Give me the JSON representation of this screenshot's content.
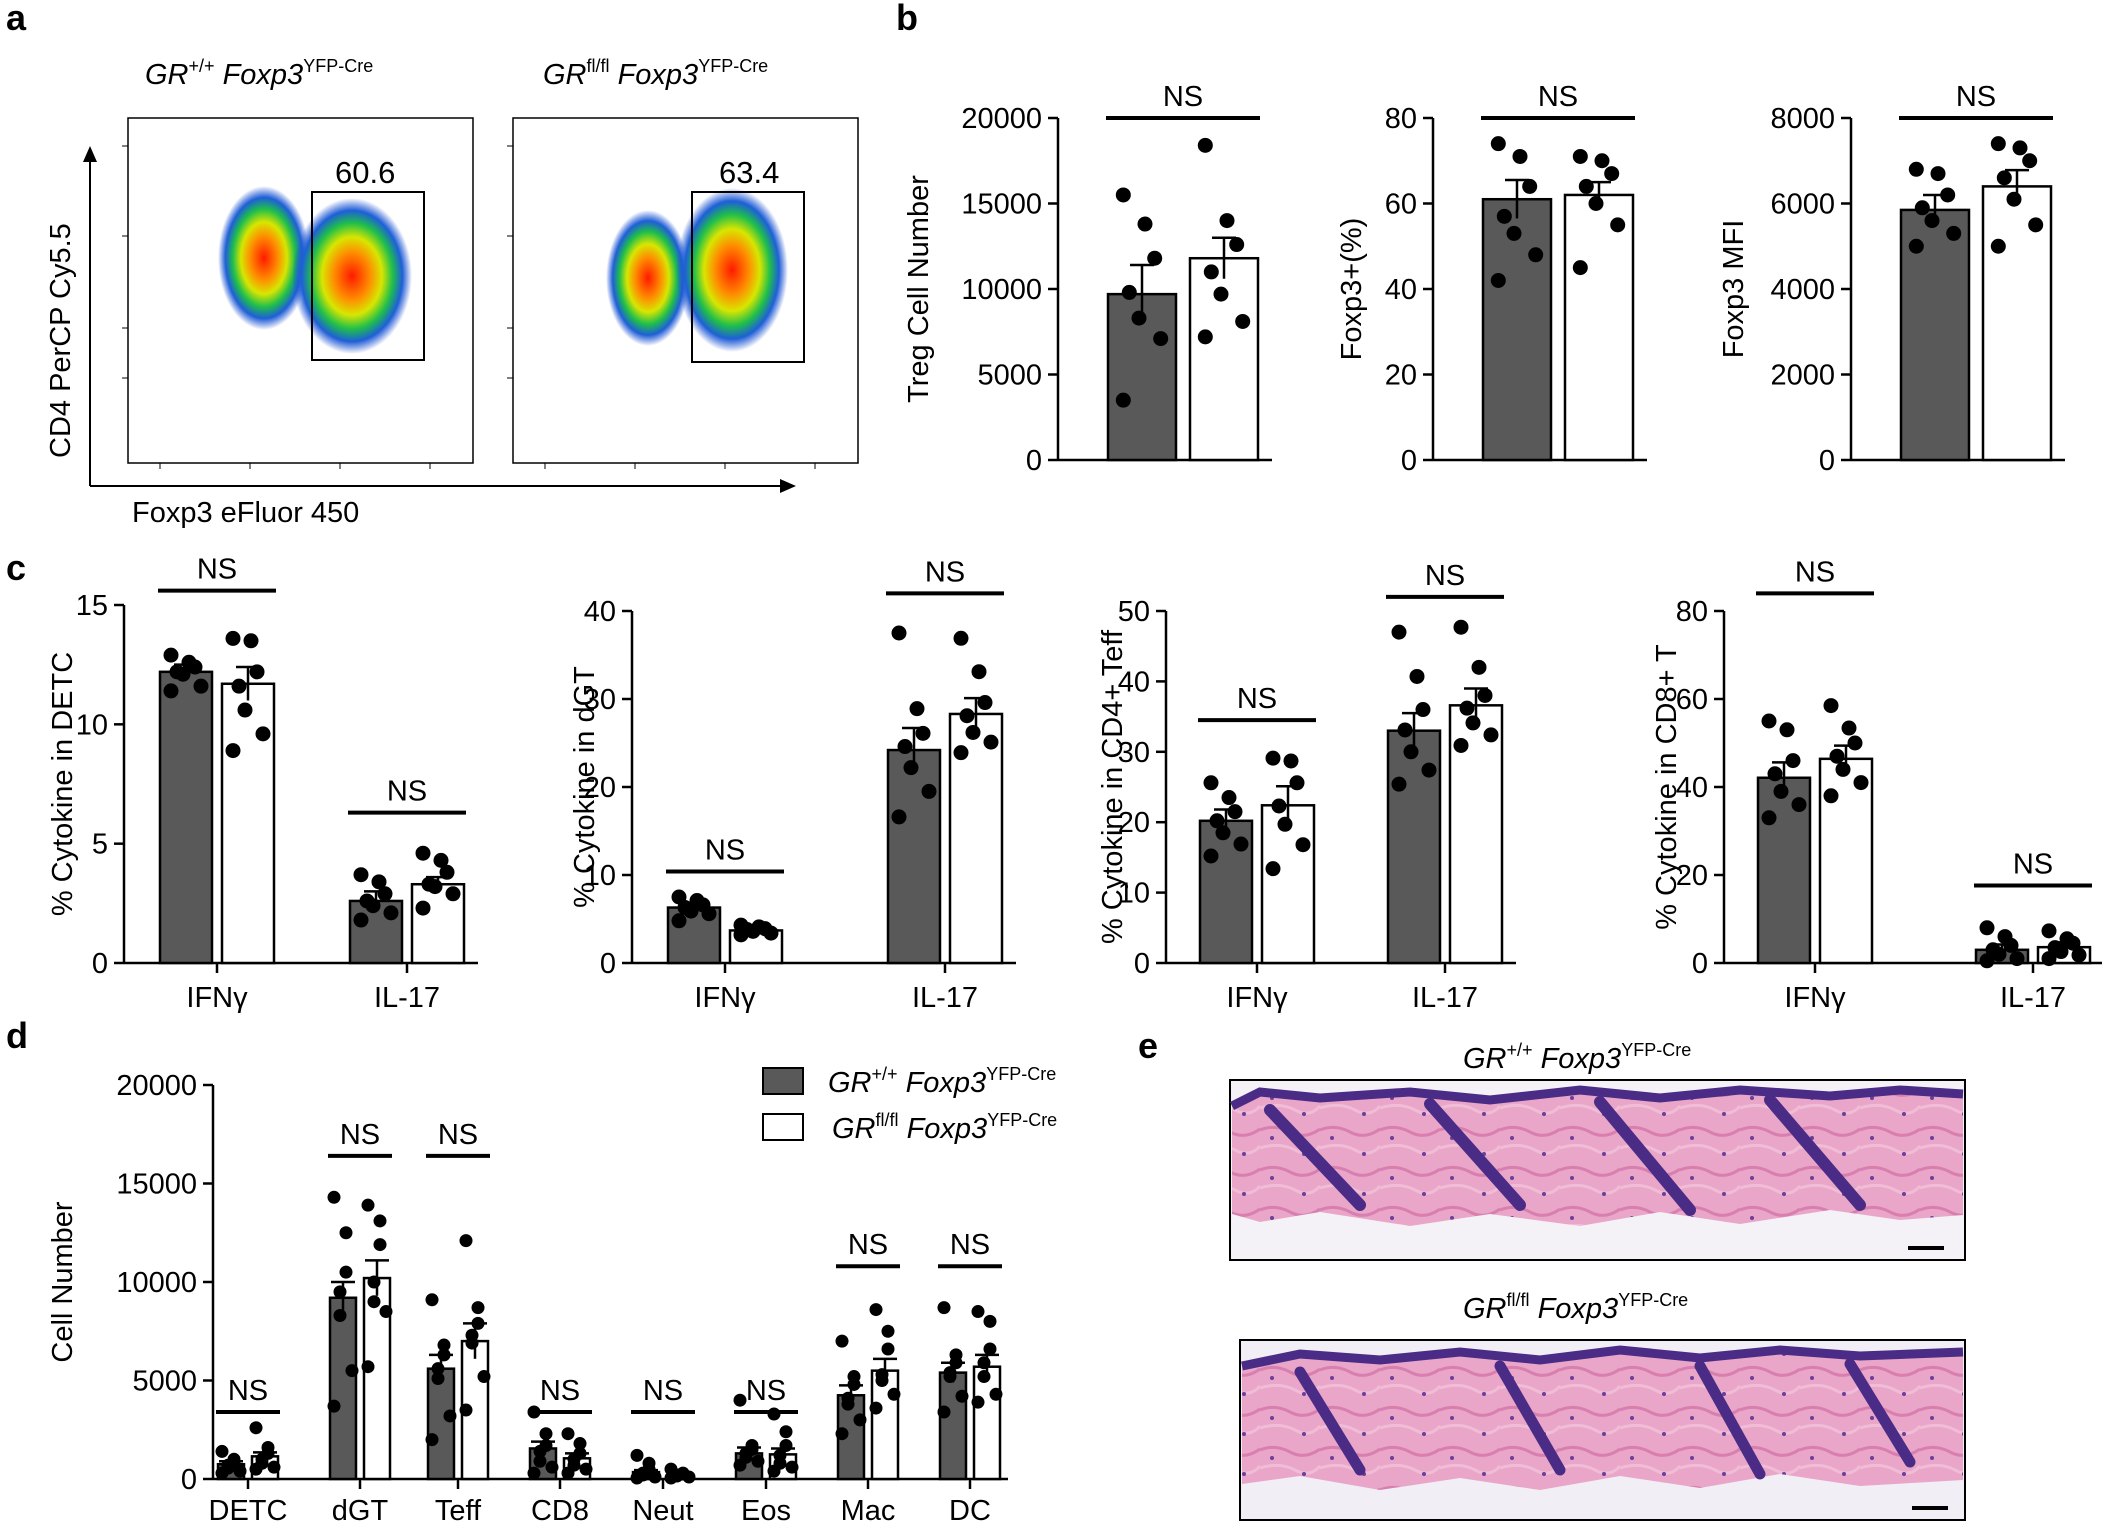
{
  "panels": {
    "a": "a",
    "b": "b",
    "c": "c",
    "d": "d",
    "e": "e"
  },
  "colors": {
    "gr_wt": "#595959",
    "gr_flfl": "#ffffff",
    "point": "#000000",
    "ink": "#000000"
  },
  "flow": {
    "type": "flow-cytometry",
    "x_label": "Foxp3 eFluor 450",
    "y_label": "CD4 PerCP Cy5.5",
    "plots": [
      {
        "genotype_main": "GR",
        "genotype_sup1": "+/+",
        "genotype_mid": " Foxp3",
        "genotype_sup2": "YFP-Cre",
        "gate_percent": "60.6"
      },
      {
        "genotype_main": "GR",
        "genotype_sup1": "fl/fl",
        "genotype_mid": " Foxp3",
        "genotype_sup2": "YFP-Cre",
        "gate_percent": "63.4"
      }
    ]
  },
  "chart_data": [
    {
      "id": "b1",
      "type": "bar",
      "ylabel": "Treg Cell Number",
      "ylim": [
        0,
        20000
      ],
      "yticks": [
        0,
        5000,
        10000,
        15000,
        20000
      ],
      "categories": [
        ""
      ],
      "series": [
        {
          "name": "GR+/+ Foxp3YFP-Cre",
          "values": [
            9700
          ],
          "sem": [
            1700
          ],
          "points": [
            [
              15500,
              13800,
              11800,
              9800,
              8300,
              7100,
              3500
            ]
          ]
        },
        {
          "name": "GRfl/fl Foxp3YFP-Cre",
          "values": [
            11800
          ],
          "sem": [
            1200
          ],
          "points": [
            [
              18400,
              14000,
              12600,
              11000,
              9700,
              8100,
              7200
            ]
          ]
        }
      ],
      "annotations": [
        {
          "text": "NS",
          "groups": [
            0
          ],
          "y": 20000
        }
      ]
    },
    {
      "id": "b2",
      "type": "bar",
      "ylabel": "Foxp3+(%)",
      "ylim": [
        0,
        80
      ],
      "yticks": [
        0,
        20,
        40,
        60,
        80
      ],
      "categories": [
        ""
      ],
      "series": [
        {
          "name": "GR+/+ Foxp3YFP-Cre",
          "values": [
            61
          ],
          "sem": [
            4.5
          ],
          "points": [
            [
              74,
              71,
              64,
              57,
              53,
              48,
              42
            ]
          ]
        },
        {
          "name": "GRfl/fl Foxp3YFP-Cre",
          "values": [
            62
          ],
          "sem": [
            3
          ],
          "points": [
            [
              71,
              70,
              67,
              64,
              60,
              55,
              45
            ]
          ]
        }
      ],
      "annotations": [
        {
          "text": "NS",
          "groups": [
            0
          ],
          "y": 80
        }
      ]
    },
    {
      "id": "b3",
      "type": "bar",
      "ylabel": "Foxp3 MFI",
      "ylim": [
        0,
        8000
      ],
      "yticks": [
        0,
        2000,
        4000,
        6000,
        8000
      ],
      "categories": [
        ""
      ],
      "series": [
        {
          "name": "GR+/+ Foxp3YFP-Cre",
          "values": [
            5850
          ],
          "sem": [
            350
          ],
          "points": [
            [
              6800,
              6700,
              6200,
              5900,
              5600,
              5300,
              5000
            ]
          ]
        },
        {
          "name": "GRfl/fl Foxp3YFP-Cre",
          "values": [
            6400
          ],
          "sem": [
            380
          ],
          "points": [
            [
              7400,
              7300,
              7000,
              6600,
              6100,
              5500,
              5000
            ]
          ]
        }
      ],
      "annotations": [
        {
          "text": "NS",
          "groups": [
            0
          ],
          "y": 8000
        }
      ]
    },
    {
      "id": "c1",
      "type": "bar",
      "ylabel": "% Cytokine in DETC",
      "ylim": [
        0,
        15
      ],
      "yticks": [
        0,
        5,
        10,
        15
      ],
      "categories": [
        "IFNγ",
        "IL-17"
      ],
      "series": [
        {
          "name": "GR+/+ Foxp3YFP-Cre",
          "values": [
            12.2,
            2.6
          ],
          "sem": [
            0.3,
            0.4
          ],
          "points": [
            [
              12.9,
              12.6,
              12.4,
              12.2,
              12.1,
              11.6,
              11.4
            ],
            [
              3.7,
              3.4,
              2.9,
              2.6,
              2.4,
              2.1,
              1.8
            ]
          ]
        },
        {
          "name": "GRfl/fl Foxp3YFP-Cre",
          "values": [
            11.7,
            3.3
          ],
          "sem": [
            0.7,
            0.3
          ],
          "points": [
            [
              13.6,
              13.5,
              12.2,
              11.6,
              10.6,
              9.6,
              8.9
            ],
            [
              4.6,
              4.3,
              3.8,
              3.3,
              3.2,
              2.9,
              2.3
            ]
          ]
        }
      ],
      "annotations": [
        {
          "text": "NS",
          "groups": [
            0
          ],
          "y": 15.6
        },
        {
          "text": "NS",
          "groups": [
            1
          ],
          "y": 6.3
        }
      ]
    },
    {
      "id": "c2",
      "type": "bar",
      "ylabel": "% Cytokine in dGT",
      "ylim": [
        0,
        40
      ],
      "yticks": [
        0,
        10,
        20,
        30,
        40
      ],
      "categories": [
        "IFNγ",
        "IL-17"
      ],
      "series": [
        {
          "name": "GR+/+ Foxp3YFP-Cre",
          "values": [
            6.3,
            24.2
          ],
          "sem": [
            0.4,
            2.5
          ],
          "points": [
            [
              7.5,
              7.1,
              6.6,
              6.3,
              5.9,
              5.6,
              4.8
            ],
            [
              37.5,
              28.9,
              26.1,
              24.6,
              22.2,
              19.5,
              16.6
            ]
          ]
        },
        {
          "name": "GRfl/fl Foxp3YFP-Cre",
          "values": [
            3.7,
            28.3
          ],
          "sem": [
            0.2,
            1.8
          ],
          "points": [
            [
              4.3,
              4.1,
              3.9,
              3.8,
              3.6,
              3.4,
              3.2
            ],
            [
              36.9,
              33.1,
              29.6,
              28.1,
              26.2,
              25.1,
              23.9
            ]
          ]
        }
      ],
      "annotations": [
        {
          "text": "NS",
          "groups": [
            0
          ],
          "y": 10.4
        },
        {
          "text": "NS",
          "groups": [
            1
          ],
          "y": 42
        }
      ]
    },
    {
      "id": "c3",
      "type": "bar",
      "ylabel": "% Cytokine in CD4+ Teff",
      "ylim": [
        0,
        50
      ],
      "yticks": [
        0,
        10,
        20,
        30,
        40,
        50
      ],
      "categories": [
        "IFNγ",
        "IL-17"
      ],
      "series": [
        {
          "name": "GR+/+ Foxp3YFP-Cre",
          "values": [
            20.2,
            33
          ],
          "sem": [
            1.6,
            2.5
          ],
          "points": [
            [
              25.6,
              23.5,
              21.5,
              20.2,
              18.5,
              16.9,
              15.2
            ],
            [
              47,
              40.7,
              36,
              33.1,
              30,
              27.4,
              25.4
            ]
          ]
        },
        {
          "name": "GRfl/fl Foxp3YFP-Cre",
          "values": [
            22.4,
            36.6
          ],
          "sem": [
            2.7,
            2.4
          ],
          "points": [
            [
              29.1,
              28.7,
              25.6,
              22.3,
              19.7,
              16.8,
              13.4
            ],
            [
              47.7,
              42,
              38,
              36.2,
              34.1,
              32.4,
              30.9
            ]
          ]
        }
      ],
      "annotations": [
        {
          "text": "NS",
          "groups": [
            0
          ],
          "y": 34.5
        },
        {
          "text": "NS",
          "groups": [
            1
          ],
          "y": 52
        }
      ]
    },
    {
      "id": "c4",
      "type": "bar",
      "ylabel": "% Cytokine in CD8+ T",
      "ylim": [
        0,
        80
      ],
      "yticks": [
        0,
        20,
        40,
        60,
        80
      ],
      "categories": [
        "IFNγ",
        "IL-17"
      ],
      "series": [
        {
          "name": "GR+/+ Foxp3YFP-Cre",
          "values": [
            42.1,
            3
          ],
          "sem": [
            3.5,
            1.2
          ],
          "points": [
            [
              55,
              53,
              46,
              43,
              39,
              36,
              33
            ],
            [
              8,
              6,
              4,
              3,
              2,
              1,
              0.5
            ]
          ]
        },
        {
          "name": "GRfl/fl Foxp3YFP-Cre",
          "values": [
            46.4,
            3.6
          ],
          "sem": [
            3,
            1.1
          ],
          "points": [
            [
              58.5,
              53.4,
              50,
              47,
              44,
              41,
              38
            ],
            [
              7.3,
              5.5,
              4.5,
              3.5,
              2.6,
              1.8,
              1
            ]
          ]
        }
      ],
      "annotations": [
        {
          "text": "NS",
          "groups": [
            0
          ],
          "y": 84
        },
        {
          "text": "NS",
          "groups": [
            1
          ],
          "y": 17.6
        }
      ]
    },
    {
      "id": "d",
      "type": "bar",
      "ylabel": "Cell Number",
      "ylim": [
        0,
        20000
      ],
      "yticks": [
        0,
        5000,
        10000,
        15000,
        20000
      ],
      "categories": [
        "DETC",
        "dGT",
        "Teff",
        "CD8",
        "Neut",
        "Eos",
        "Mac",
        "DC"
      ],
      "series": [
        {
          "name": "GR+/+ Foxp3YFP-Cre",
          "values": [
            750,
            9200,
            5600,
            1550,
            350,
            1300,
            4250,
            5400
          ],
          "sem": [
            150,
            800,
            700,
            350,
            100,
            300,
            500,
            500
          ],
          "points": [
            [
              1400,
              1000,
              800,
              700,
              550,
              400,
              300
            ],
            [
              14300,
              12500,
              10500,
              9500,
              8300,
              5500,
              3700
            ],
            [
              9100,
              6800,
              6300,
              5600,
              5100,
              3200,
              2000
            ],
            [
              3400,
              2300,
              1700,
              1400,
              900,
              600,
              300
            ],
            [
              1200,
              800,
              500,
              300,
              200,
              100,
              50
            ],
            [
              4000,
              1700,
              1500,
              1300,
              1100,
              900,
              700
            ],
            [
              7000,
              5200,
              4800,
              4100,
              3800,
              3000,
              2300
            ],
            [
              8700,
              6300,
              5900,
              5400,
              5200,
              4200,
              3400
            ]
          ]
        },
        {
          "name": "GRfl/fl Foxp3YFP-Cre",
          "values": [
            1150,
            10200,
            7000,
            1050,
            200,
            1250,
            5500,
            5700
          ],
          "sem": [
            200,
            900,
            900,
            250,
            50,
            300,
            600,
            600
          ],
          "points": [
            [
              2600,
              1600,
              1300,
              1000,
              800,
              600,
              500
            ],
            [
              13900,
              13100,
              11900,
              10000,
              9000,
              8500,
              5700
            ],
            [
              12100,
              8700,
              7900,
              7300,
              6900,
              5200,
              3500
            ],
            [
              2300,
              1800,
              1300,
              1000,
              700,
              500,
              300
            ],
            [
              500,
              300,
              250,
              200,
              150,
              100,
              50
            ],
            [
              3300,
              2400,
              1700,
              1200,
              800,
              600,
              400
            ],
            [
              8600,
              7500,
              6600,
              5300,
              5000,
              4300,
              3600
            ],
            [
              8500,
              8000,
              6600,
              5900,
              5200,
              4300,
              3900
            ]
          ]
        }
      ],
      "annotations": [
        {
          "text": "NS",
          "groups": [
            0
          ],
          "y": 3400
        },
        {
          "text": "NS",
          "groups": [
            1
          ],
          "y": 16400
        },
        {
          "text": "NS",
          "groups": [
            2
          ],
          "y": 16400
        },
        {
          "text": "NS",
          "groups": [
            3
          ],
          "y": 3400
        },
        {
          "text": "NS",
          "groups": [
            4
          ],
          "y": 3400
        },
        {
          "text": "NS",
          "groups": [
            5
          ],
          "y": 3400
        },
        {
          "text": "NS",
          "groups": [
            6
          ],
          "y": 10800
        },
        {
          "text": "NS",
          "groups": [
            7
          ],
          "y": 10800
        }
      ]
    }
  ],
  "legend": [
    {
      "main": "GR",
      "sup1": "+/+",
      "mid": " Foxp3",
      "sup2": "YFP-Cre"
    },
    {
      "main": "GR",
      "sup1": "fl/fl",
      "mid": " Foxp3",
      "sup2": "YFP-Cre"
    }
  ],
  "histology": [
    {
      "main": "GR",
      "sup1": "+/+",
      "mid": " Foxp3",
      "sup2": "YFP-Cre"
    },
    {
      "main": "GR",
      "sup1": "fl/fl",
      "mid": " Foxp3",
      "sup2": "YFP-Cre"
    }
  ]
}
